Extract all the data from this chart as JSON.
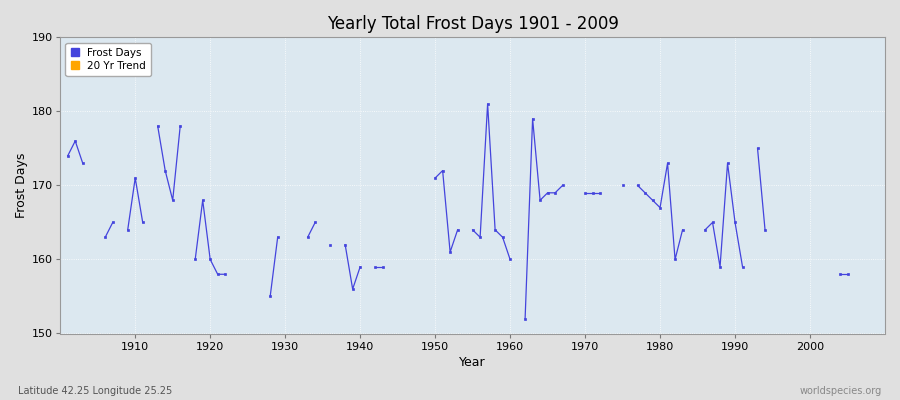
{
  "title": "Yearly Total Frost Days 1901 - 2009",
  "xlabel": "Year",
  "ylabel": "Frost Days",
  "subtitle_left": "Latitude 42.25 Longitude 25.25",
  "subtitle_right": "worldspecies.org",
  "ylim": [
    150,
    190
  ],
  "xlim": [
    1900,
    2010
  ],
  "yticks": [
    150,
    160,
    170,
    180,
    190
  ],
  "xticks": [
    1910,
    1920,
    1930,
    1940,
    1950,
    1960,
    1970,
    1980,
    1990,
    2000
  ],
  "line_color": "#4444dd",
  "marker_color": "#4444dd",
  "bg_color": "#e0e0e0",
  "plot_bg_color": "#dce8f0",
  "grid_color": "#ffffff",
  "legend_items": [
    "Frost Days",
    "20 Yr Trend"
  ],
  "legend_colors": [
    "#4444dd",
    "#ffa500"
  ],
  "years": [
    1901,
    1902,
    1903,
    1906,
    1907,
    1909,
    1910,
    1911,
    1913,
    1914,
    1915,
    1916,
    1918,
    1919,
    1920,
    1921,
    1922,
    1928,
    1929,
    1933,
    1934,
    1936,
    1938,
    1939,
    1940,
    1942,
    1943,
    1950,
    1951,
    1952,
    1953,
    1955,
    1956,
    1957,
    1958,
    1959,
    1960,
    1962,
    1963,
    1964,
    1965,
    1966,
    1967,
    1970,
    1971,
    1972,
    1975,
    1977,
    1978,
    1979,
    1980,
    1981,
    1982,
    1983,
    1986,
    1987,
    1988,
    1989,
    1990,
    1991,
    1993,
    1994,
    2004,
    2005
  ],
  "values": [
    174,
    176,
    173,
    163,
    165,
    164,
    171,
    165,
    178,
    172,
    168,
    178,
    160,
    168,
    160,
    158,
    158,
    155,
    163,
    163,
    165,
    162,
    162,
    156,
    159,
    159,
    159,
    171,
    172,
    161,
    164,
    164,
    163,
    181,
    164,
    163,
    160,
    152,
    179,
    168,
    169,
    169,
    170,
    169,
    169,
    169,
    170,
    170,
    169,
    168,
    167,
    173,
    160,
    164,
    164,
    165,
    159,
    173,
    165,
    159,
    175,
    164,
    158,
    158
  ]
}
